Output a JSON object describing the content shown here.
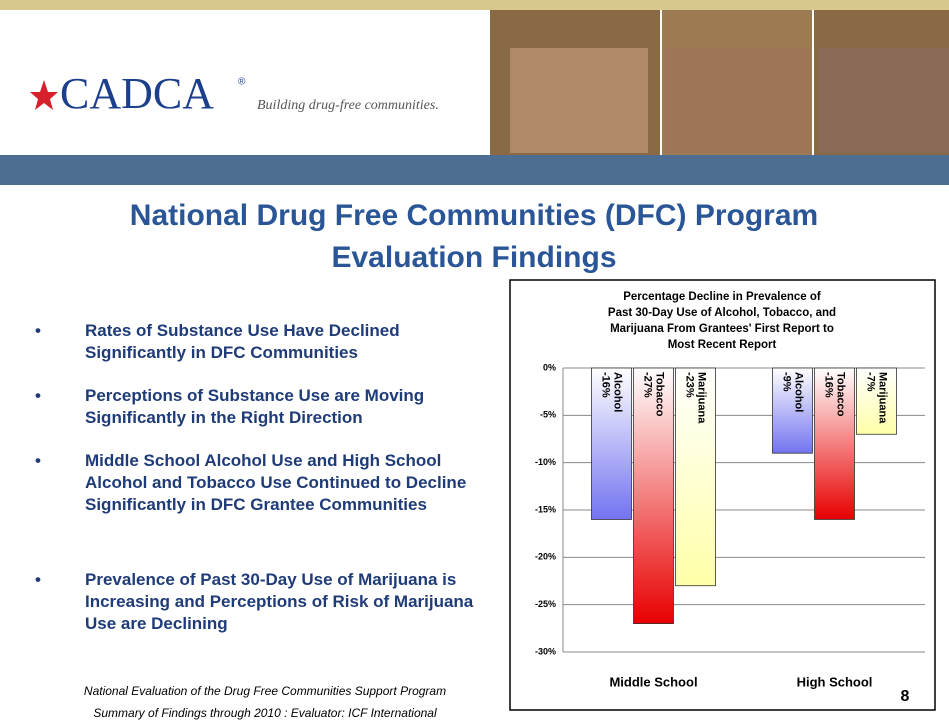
{
  "header": {
    "logo": "CADCA",
    "registered": "®",
    "tagline": "Building drug-free communities."
  },
  "title_lines": [
    "National Drug Free Communities (DFC) Program",
    "Evaluation Findings"
  ],
  "bullets": [
    "Rates of Substance Use Have Declined Significantly in DFC Communities",
    "Perceptions of Substance Use are Moving Significantly in the Right Direction",
    "Middle School Alcohol Use and High School Alcohol and Tobacco Use Continued to Decline Significantly in DFC Grantee Communities",
    "Prevalence of Past 30-Day Use of Marijuana is Increasing and Perceptions of Risk of Marijuana Use are Declining"
  ],
  "footer": [
    "National Evaluation of the Drug Free Communities Support Program",
    "Summary of Findings through 2010 : Evaluator: ICF International"
  ],
  "page_number": 8,
  "chart_data": {
    "type": "bar",
    "title": [
      "Percentage Decline in Prevalence of",
      "Past 30-Day Use of Alcohol, Tobacco, and",
      "Marijuana From Grantees' First Report to",
      "Most Recent Report"
    ],
    "categories": [
      "Middle School",
      "High School"
    ],
    "series": [
      {
        "name": "Alcohol",
        "color": "#7373f0",
        "values": [
          -16,
          -9
        ],
        "value_labels": [
          "-16%",
          "-9%"
        ]
      },
      {
        "name": "Tobacco",
        "color": "#e80000",
        "values": [
          -27,
          -16
        ],
        "value_labels": [
          "-27%",
          "-16%"
        ]
      },
      {
        "name": "Marijuana",
        "color": "#ffffa8",
        "values": [
          -23,
          -7
        ],
        "value_labels": [
          "-23%",
          "-7%"
        ]
      }
    ],
    "ylim": [
      -30,
      0
    ],
    "yticks": [
      {
        "value": 0,
        "label": "0%"
      },
      {
        "value": -5,
        "label": "-5%"
      },
      {
        "value": -10,
        "label": "-10%"
      },
      {
        "value": -15,
        "label": "-15%"
      },
      {
        "value": -20,
        "label": "-20%"
      },
      {
        "value": -25,
        "label": "-25%"
      },
      {
        "value": -30,
        "label": "-30%"
      }
    ],
    "grid": true
  }
}
